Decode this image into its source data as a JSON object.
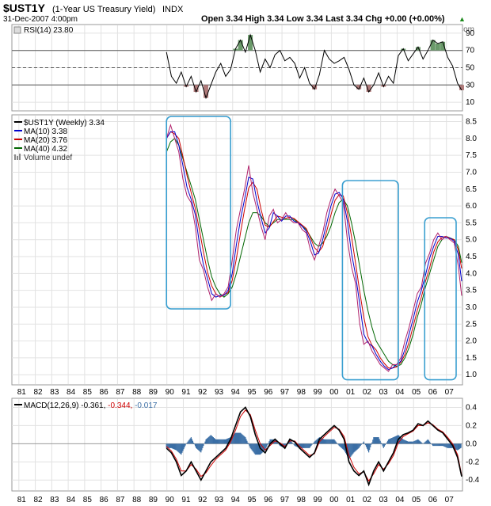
{
  "header": {
    "symbol": "$UST1Y",
    "name": "(1-Year US Treasury Yield)",
    "exchange": "INDX",
    "date": "31-Dec-2007 4:00pm",
    "quote": "Open 3.34  High 3.34  Low 3.34  Last 3.34  Chg +0.00 (+0.00%)",
    "quote_arrow": "▲",
    "watermark": "©StockCharts.com"
  },
  "chart_data": [
    {
      "type": "line",
      "panel": "rsi",
      "legend": "RSI(14) 23.80",
      "ylim": [
        0,
        100
      ],
      "y_ticks": [
        "90",
        "70",
        "50",
        "30",
        "10"
      ],
      "y_tick_values": [
        90,
        70,
        50,
        30,
        10
      ],
      "reference_lines": [
        70,
        50,
        30
      ],
      "x": [
        1990.0,
        1990.3,
        1990.6,
        1990.9,
        1991.2,
        1991.5,
        1991.8,
        1992.1,
        1992.4,
        1992.7,
        1993.0,
        1993.3,
        1993.6,
        1993.9,
        1994.2,
        1994.5,
        1994.8,
        1995.1,
        1995.4,
        1995.7,
        1996.0,
        1996.3,
        1996.6,
        1996.9,
        1997.2,
        1997.5,
        1997.8,
        1998.1,
        1998.4,
        1998.7,
        1999.0,
        1999.3,
        1999.6,
        1999.9,
        2000.2,
        2000.5,
        2000.8,
        2001.1,
        2001.4,
        2001.7,
        2002.0,
        2002.3,
        2002.6,
        2002.9,
        2003.2,
        2003.5,
        2003.8,
        2004.1,
        2004.4,
        2004.7,
        2005.0,
        2005.3,
        2005.6,
        2005.9,
        2006.2,
        2006.5,
        2006.8,
        2007.1,
        2007.4,
        2007.7,
        2007.95
      ],
      "values": [
        68,
        40,
        32,
        45,
        28,
        40,
        22,
        35,
        15,
        30,
        45,
        55,
        40,
        48,
        72,
        82,
        68,
        88,
        70,
        45,
        60,
        50,
        65,
        70,
        58,
        62,
        55,
        38,
        50,
        32,
        25,
        42,
        70,
        60,
        55,
        58,
        62,
        48,
        30,
        25,
        38,
        22,
        30,
        44,
        28,
        40,
        32,
        64,
        72,
        58,
        66,
        74,
        60,
        70,
        82,
        78,
        80,
        62,
        52,
        32,
        24
      ]
    },
    {
      "type": "line",
      "panel": "price",
      "legend": [
        {
          "name": "$UST1Y (Weekly) 3.34",
          "color": "#000000"
        },
        {
          "name": "MA(10) 3.38",
          "color": "#0000cc"
        },
        {
          "name": "MA(20) 3.76",
          "color": "#cc0000"
        },
        {
          "name": "MA(40) 4.32",
          "color": "#006600"
        },
        {
          "name": "Volume undef",
          "color": "#666666"
        }
      ],
      "ylim": [
        0.7,
        8.7
      ],
      "y_ticks": [
        "8.5",
        "8.0",
        "7.5",
        "7.0",
        "6.5",
        "6.0",
        "5.5",
        "5.0",
        "4.5",
        "4.0",
        "3.5",
        "3.0",
        "2.5",
        "2.0",
        "1.5",
        "1.0"
      ],
      "y_tick_values": [
        8.5,
        8.0,
        7.5,
        7.0,
        6.5,
        6.0,
        5.5,
        5.0,
        4.5,
        4.0,
        3.5,
        3.0,
        2.5,
        2.0,
        1.5,
        1.0
      ],
      "x_ticks": [
        "81",
        "82",
        "83",
        "84",
        "85",
        "86",
        "87",
        "88",
        "89",
        "90",
        "91",
        "92",
        "93",
        "94",
        "95",
        "96",
        "97",
        "98",
        "99",
        "00",
        "01",
        "02",
        "03",
        "04",
        "05",
        "06",
        "07"
      ],
      "x_tick_values": [
        1981,
        1982,
        1983,
        1984,
        1985,
        1986,
        1987,
        1988,
        1989,
        1990,
        1991,
        1992,
        1993,
        1994,
        1995,
        1996,
        1997,
        1998,
        1999,
        2000,
        2001,
        2002,
        2003,
        2004,
        2005,
        2006,
        2007
      ],
      "xlim": [
        1980.6,
        2008.0
      ],
      "x": [
        1990.0,
        1990.25,
        1990.5,
        1990.75,
        1991.0,
        1991.25,
        1991.5,
        1991.75,
        1992.0,
        1992.25,
        1992.5,
        1992.75,
        1993.0,
        1993.25,
        1993.5,
        1993.75,
        1994.0,
        1994.25,
        1994.5,
        1994.75,
        1995.0,
        1995.25,
        1995.5,
        1995.75,
        1996.0,
        1996.25,
        1996.5,
        1996.75,
        1997.0,
        1997.25,
        1997.5,
        1997.75,
        1998.0,
        1998.25,
        1998.5,
        1998.75,
        1999.0,
        1999.25,
        1999.5,
        1999.75,
        2000.0,
        2000.25,
        2000.5,
        2000.75,
        2001.0,
        2001.25,
        2001.5,
        2001.75,
        2002.0,
        2002.25,
        2002.5,
        2002.75,
        2003.0,
        2003.25,
        2003.5,
        2003.75,
        2004.0,
        2004.25,
        2004.5,
        2004.75,
        2005.0,
        2005.25,
        2005.5,
        2005.75,
        2006.0,
        2006.25,
        2006.5,
        2006.75,
        2007.0,
        2007.25,
        2007.5,
        2007.75,
        2007.95
      ],
      "values": [
        8.0,
        8.4,
        8.0,
        7.6,
        6.8,
        6.3,
        6.1,
        5.4,
        4.4,
        4.1,
        3.6,
        3.2,
        3.4,
        3.3,
        3.4,
        3.6,
        4.4,
        5.3,
        5.9,
        6.5,
        7.2,
        6.4,
        5.9,
        5.4,
        5.0,
        5.7,
        5.9,
        5.5,
        5.6,
        5.8,
        5.6,
        5.5,
        5.5,
        5.3,
        5.2,
        4.7,
        4.4,
        4.8,
        5.2,
        5.8,
        6.2,
        6.5,
        6.3,
        6.1,
        5.0,
        4.2,
        3.7,
        2.5,
        1.9,
        2.0,
        1.7,
        1.5,
        1.3,
        1.2,
        1.1,
        1.3,
        1.3,
        1.5,
        2.0,
        2.4,
        2.9,
        3.4,
        3.6,
        4.3,
        4.6,
        5.0,
        5.2,
        5.0,
        5.1,
        5.0,
        4.9,
        4.2,
        3.34
      ],
      "ma40": [
        7.6,
        7.9,
        8.0,
        7.8,
        7.4,
        7.0,
        6.6,
        6.2,
        5.6,
        5.0,
        4.4,
        3.9,
        3.6,
        3.4,
        3.3,
        3.4,
        3.6,
        4.0,
        4.5,
        5.0,
        5.5,
        5.8,
        5.8,
        5.7,
        5.5,
        5.4,
        5.5,
        5.6,
        5.6,
        5.6,
        5.6,
        5.6,
        5.5,
        5.4,
        5.3,
        5.1,
        4.9,
        4.8,
        4.9,
        5.1,
        5.4,
        5.8,
        6.1,
        6.2,
        6.0,
        5.5,
        4.9,
        4.2,
        3.5,
        2.9,
        2.4,
        2.0,
        1.8,
        1.6,
        1.4,
        1.3,
        1.25,
        1.3,
        1.5,
        1.8,
        2.2,
        2.7,
        3.1,
        3.6,
        4.0,
        4.4,
        4.8,
        5.0,
        5.1,
        5.05,
        5.0,
        4.8,
        4.32
      ],
      "annotations": [
        {
          "x0": 1990.0,
          "x1": 1993.9,
          "y0": 2.95,
          "y1": 8.65
        },
        {
          "x0": 2000.7,
          "x1": 2004.1,
          "y0": 0.85,
          "y1": 6.75
        },
        {
          "x0": 2005.7,
          "x1": 2008.1,
          "y0": 0.85,
          "y1": 5.65
        }
      ]
    },
    {
      "type": "line",
      "panel": "macd",
      "legend": [
        {
          "name": "MACD(12,26,9)",
          "color": "#000000"
        },
        {
          "name": "-0.361,",
          "color": "#000000"
        },
        {
          "name": "-0.344,",
          "color": "#cc0000"
        },
        {
          "name": "-0.017",
          "color": "#3a6ea5"
        }
      ],
      "ylim": [
        -0.52,
        0.5
      ],
      "y_ticks": [
        "0.4",
        "0.2",
        "0.0",
        "-0.2",
        "-0.4"
      ],
      "y_tick_values": [
        0.4,
        0.2,
        0.0,
        -0.2,
        -0.4
      ],
      "x_ticks": [
        "81",
        "82",
        "83",
        "84",
        "85",
        "86",
        "87",
        "88",
        "89",
        "90",
        "91",
        "92",
        "93",
        "94",
        "95",
        "96",
        "97",
        "98",
        "99",
        "00",
        "01",
        "02",
        "03",
        "04",
        "05",
        "06",
        "07"
      ],
      "x_tick_values": [
        1981,
        1982,
        1983,
        1984,
        1985,
        1986,
        1987,
        1988,
        1989,
        1990,
        1991,
        1992,
        1993,
        1994,
        1995,
        1996,
        1997,
        1998,
        1999,
        2000,
        2001,
        2002,
        2003,
        2004,
        2005,
        2006,
        2007
      ],
      "x": [
        1990.0,
        1990.3,
        1990.6,
        1990.9,
        1991.2,
        1991.5,
        1991.8,
        1992.1,
        1992.4,
        1992.7,
        1993.0,
        1993.3,
        1993.6,
        1993.9,
        1994.2,
        1994.5,
        1994.8,
        1995.1,
        1995.4,
        1995.7,
        1996.0,
        1996.3,
        1996.6,
        1996.9,
        1997.2,
        1997.5,
        1997.8,
        1998.1,
        1998.4,
        1998.7,
        1999.0,
        1999.3,
        1999.6,
        1999.9,
        2000.2,
        2000.5,
        2000.8,
        2001.1,
        2001.4,
        2001.7,
        2002.0,
        2002.3,
        2002.6,
        2002.9,
        2003.2,
        2003.5,
        2003.8,
        2004.1,
        2004.4,
        2004.7,
        2005.0,
        2005.3,
        2005.6,
        2005.9,
        2006.2,
        2006.5,
        2006.8,
        2007.1,
        2007.4,
        2007.7,
        2007.95
      ],
      "macd": [
        -0.05,
        -0.1,
        -0.2,
        -0.35,
        -0.3,
        -0.2,
        -0.3,
        -0.4,
        -0.3,
        -0.2,
        -0.15,
        -0.1,
        -0.05,
        0.05,
        0.2,
        0.35,
        0.4,
        0.3,
        0.1,
        -0.05,
        -0.1,
        0.0,
        0.05,
        0.0,
        -0.05,
        0.05,
        0.02,
        -0.05,
        -0.1,
        -0.15,
        -0.1,
        0.05,
        0.1,
        0.15,
        0.2,
        0.15,
        0.05,
        -0.2,
        -0.3,
        -0.35,
        -0.3,
        -0.45,
        -0.3,
        -0.2,
        -0.3,
        -0.2,
        -0.1,
        0.05,
        0.1,
        0.12,
        0.15,
        0.22,
        0.2,
        0.25,
        0.2,
        0.15,
        0.12,
        0.05,
        -0.02,
        -0.15,
        -0.361
      ],
      "signal": [
        -0.03,
        -0.08,
        -0.17,
        -0.3,
        -0.3,
        -0.23,
        -0.28,
        -0.36,
        -0.32,
        -0.24,
        -0.17,
        -0.12,
        -0.07,
        0.02,
        0.15,
        0.3,
        0.37,
        0.32,
        0.15,
        0.0,
        -0.07,
        -0.02,
        0.03,
        0.01,
        -0.03,
        0.03,
        0.03,
        -0.03,
        -0.08,
        -0.13,
        -0.11,
        0.02,
        0.08,
        0.13,
        0.18,
        0.16,
        0.08,
        -0.13,
        -0.26,
        -0.33,
        -0.31,
        -0.41,
        -0.33,
        -0.23,
        -0.28,
        -0.22,
        -0.13,
        0.01,
        0.08,
        0.11,
        0.14,
        0.2,
        0.2,
        0.23,
        0.21,
        0.16,
        0.13,
        0.07,
        0.0,
        -0.12,
        -0.344
      ]
    }
  ]
}
